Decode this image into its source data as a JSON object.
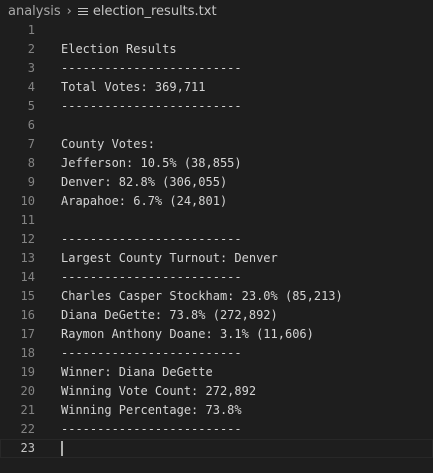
{
  "breadcrumb": {
    "folder": "analysis",
    "separator": "›",
    "file": "election_results.txt"
  },
  "editor": {
    "current_line": 23,
    "lines": [
      {
        "num": "1",
        "text": ""
      },
      {
        "num": "2",
        "text": "Election Results"
      },
      {
        "num": "3",
        "text": "-------------------------"
      },
      {
        "num": "4",
        "text": "Total Votes: 369,711"
      },
      {
        "num": "5",
        "text": "-------------------------"
      },
      {
        "num": "6",
        "text": ""
      },
      {
        "num": "7",
        "text": "County Votes:"
      },
      {
        "num": "8",
        "text": "Jefferson: 10.5% (38,855)"
      },
      {
        "num": "9",
        "text": "Denver: 82.8% (306,055)"
      },
      {
        "num": "10",
        "text": "Arapahoe: 6.7% (24,801)"
      },
      {
        "num": "11",
        "text": ""
      },
      {
        "num": "12",
        "text": "-------------------------"
      },
      {
        "num": "13",
        "text": "Largest County Turnout: Denver"
      },
      {
        "num": "14",
        "text": "-------------------------"
      },
      {
        "num": "15",
        "text": "Charles Casper Stockham: 23.0% (85,213)"
      },
      {
        "num": "16",
        "text": "Diana DeGette: 73.8% (272,892)"
      },
      {
        "num": "17",
        "text": "Raymon Anthony Doane: 3.1% (11,606)"
      },
      {
        "num": "18",
        "text": "-------------------------"
      },
      {
        "num": "19",
        "text": "Winner: Diana DeGette"
      },
      {
        "num": "20",
        "text": "Winning Vote Count: 272,892"
      },
      {
        "num": "21",
        "text": "Winning Percentage: 73.8%"
      },
      {
        "num": "22",
        "text": "-------------------------"
      },
      {
        "num": "23",
        "text": ""
      }
    ]
  },
  "colors": {
    "background": "#1e1e1e",
    "text": "#d4d4d4",
    "line_number": "#858585",
    "active_line_number": "#c6c6c6"
  }
}
